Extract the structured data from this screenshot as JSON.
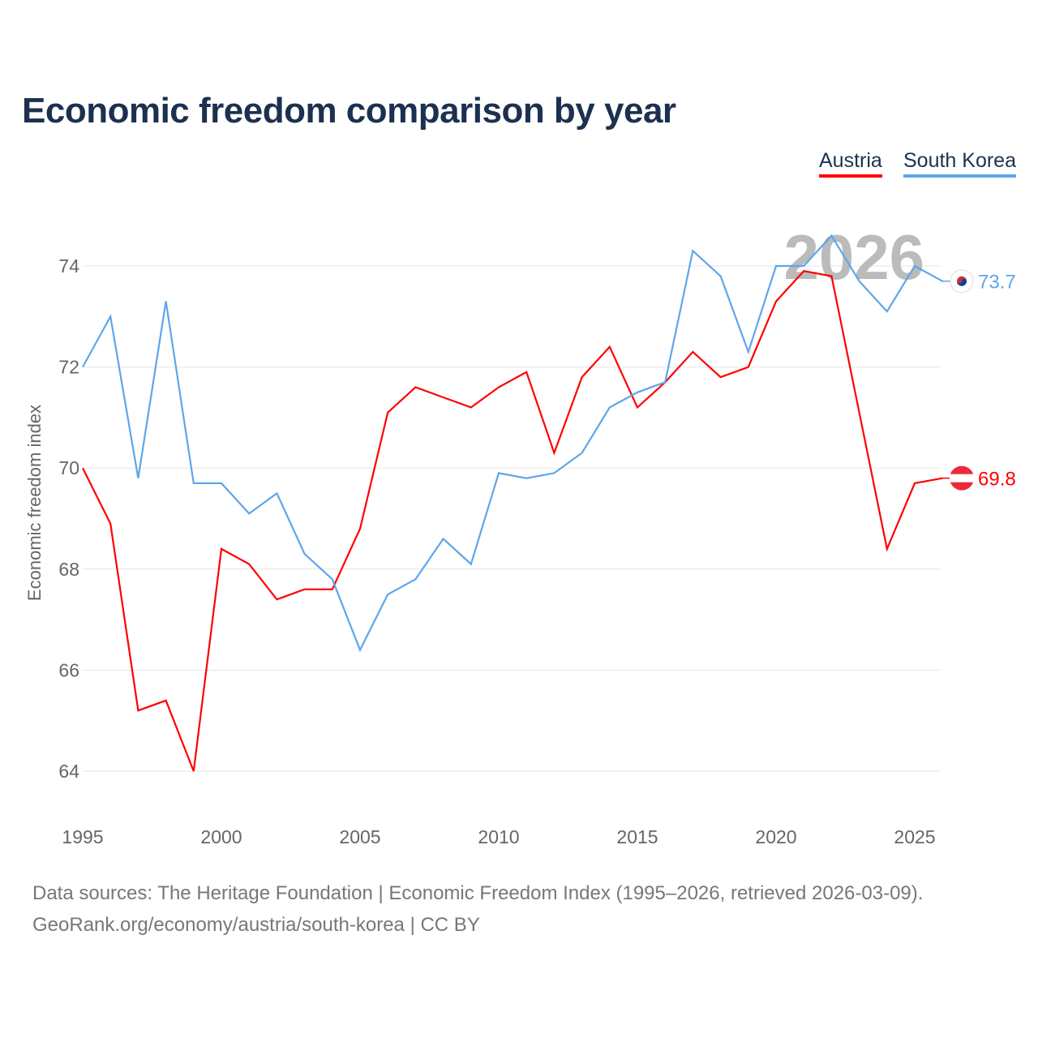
{
  "chart_data": {
    "type": "line",
    "title": "Economic freedom comparison by year",
    "xlabel": "",
    "ylabel": "Economic freedom index",
    "xlim": [
      1995,
      2026
    ],
    "ylim": [
      63.2,
      75.2
    ],
    "yticks": [
      64,
      66,
      68,
      70,
      72,
      74
    ],
    "xticks": [
      1995,
      2000,
      2005,
      2010,
      2015,
      2020,
      2025
    ],
    "grid": true,
    "legend_position": "top-right",
    "watermark_year": "2026",
    "x": [
      1995,
      1996,
      1997,
      1998,
      1999,
      2000,
      2001,
      2002,
      2003,
      2004,
      2005,
      2006,
      2007,
      2008,
      2009,
      2010,
      2011,
      2012,
      2013,
      2014,
      2015,
      2016,
      2017,
      2018,
      2019,
      2020,
      2021,
      2022,
      2023,
      2024,
      2025,
      2026
    ],
    "series": [
      {
        "name": "Austria",
        "color": "#ff0000",
        "end_label": "69.8",
        "values": [
          70.0,
          68.9,
          65.2,
          65.4,
          64.0,
          68.4,
          68.1,
          67.4,
          67.6,
          67.6,
          68.8,
          71.1,
          71.6,
          71.4,
          71.2,
          71.6,
          71.9,
          70.3,
          71.8,
          72.4,
          71.2,
          71.7,
          72.3,
          71.8,
          72.0,
          73.3,
          73.9,
          73.8,
          71.1,
          68.4,
          69.7,
          69.8
        ]
      },
      {
        "name": "South Korea",
        "color": "#5ea6ea",
        "end_label": "73.7",
        "values": [
          72.0,
          73.0,
          69.8,
          73.3,
          69.7,
          69.7,
          69.1,
          69.5,
          68.3,
          67.8,
          66.4,
          67.5,
          67.8,
          68.6,
          68.1,
          69.9,
          69.8,
          69.9,
          70.3,
          71.2,
          71.5,
          71.7,
          74.3,
          73.8,
          72.3,
          74.0,
          74.0,
          74.6,
          73.7,
          73.1,
          74.0,
          73.7
        ]
      }
    ]
  },
  "legend": {
    "austria": "Austria",
    "south_korea": "South Korea"
  },
  "footer": {
    "line1": "Data sources: The Heritage Foundation | Economic Freedom Index (1995–2026, retrieved 2026-03-09).",
    "line2": "GeoRank.org/economy/austria/south-korea | CC BY"
  }
}
